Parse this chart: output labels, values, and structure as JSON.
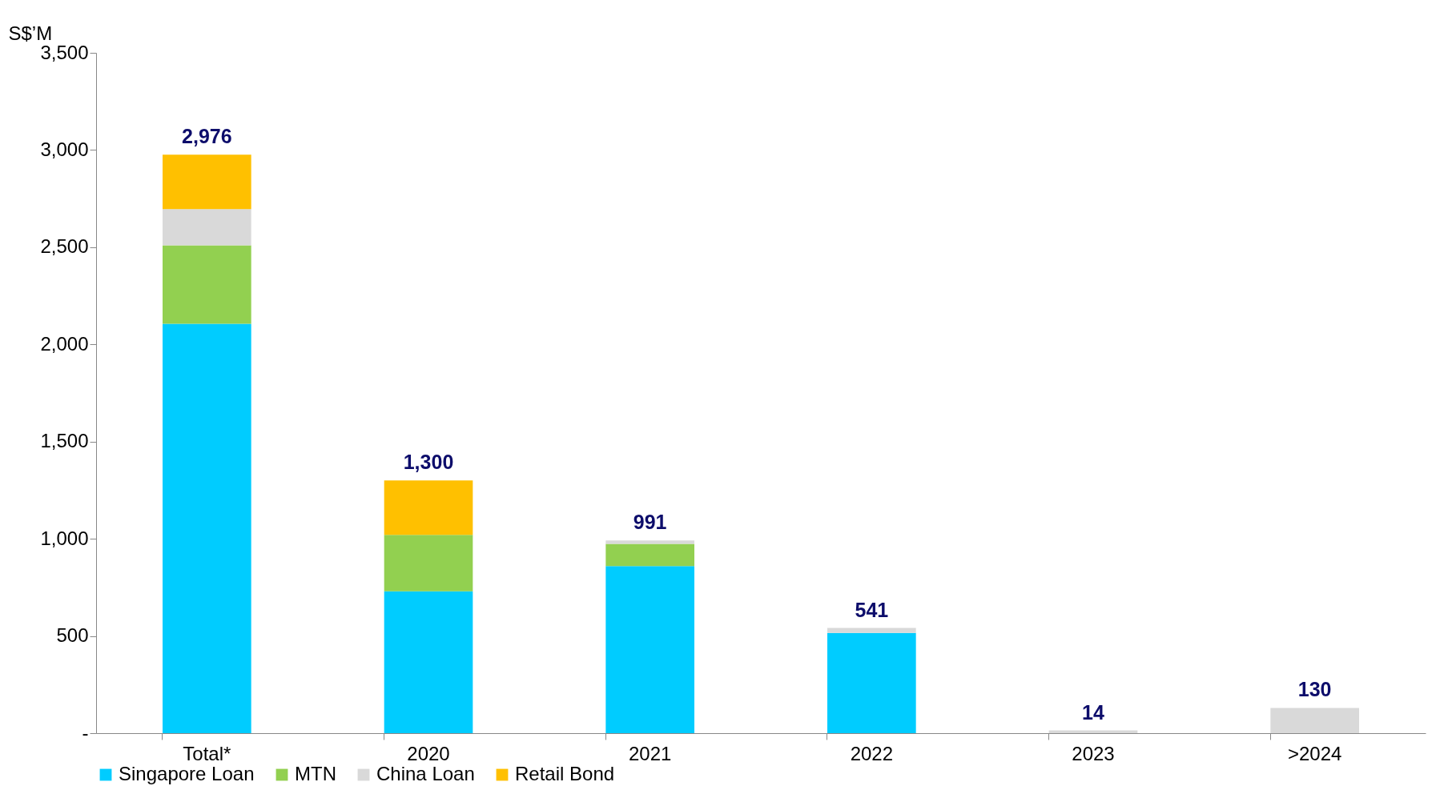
{
  "chart_data": {
    "type": "bar",
    "stacked": true,
    "ylabel": "S$’M",
    "categories": [
      "Total*",
      "2020",
      "2021",
      "2022",
      "2023",
      ">2024"
    ],
    "series": [
      {
        "name": "Singapore Loan",
        "color": "#00ccff",
        "values": [
          2106,
          730,
          860,
          516,
          null,
          null
        ]
      },
      {
        "name": "MTN",
        "color": "#92d050",
        "values": [
          404,
          290,
          114,
          null,
          null,
          null
        ]
      },
      {
        "name": "China Loan",
        "color": "#d9d9d9",
        "values": [
          186,
          null,
          17,
          25,
          14,
          130
        ]
      },
      {
        "name": "Retail Bond",
        "color": "#ffc000",
        "values": [
          280,
          280,
          null,
          null,
          null,
          null
        ]
      }
    ],
    "totals": [
      "2,976",
      "1,300",
      "991",
      "541",
      "14",
      "130"
    ],
    "ylim": [
      0,
      3500
    ],
    "yticks": [
      {
        "value": 0,
        "label": "-"
      },
      500,
      {
        "value": 1000,
        "label": "1,000"
      },
      {
        "value": 1500,
        "label": "1,500"
      },
      {
        "value": 2000,
        "label": "2,000"
      },
      {
        "value": 2500,
        "label": "2,500"
      },
      {
        "value": 3000,
        "label": "3,000"
      },
      {
        "value": 3500,
        "label": "3,500"
      }
    ],
    "grid": false,
    "legend": "bottom"
  }
}
